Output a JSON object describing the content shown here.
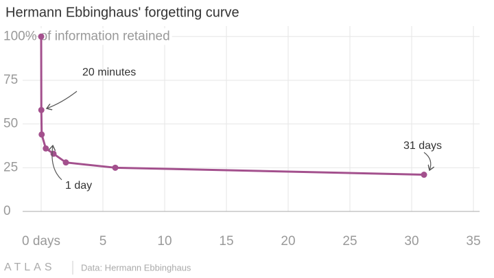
{
  "chart_data": {
    "type": "line",
    "title": "Hermann Ebbinghaus' forgetting curve",
    "ylabel": "of information retained",
    "x": [
      0,
      0.0139,
      0.0417,
      0.375,
      1,
      2,
      6,
      31
    ],
    "series": [
      {
        "color": "#a3508d",
        "values": [
          100,
          58,
          44,
          36,
          33,
          28,
          25,
          21
        ]
      }
    ],
    "xlim": [
      -1.5,
      35.5
    ],
    "xticks": [
      {
        "value": 0,
        "label": "0 days"
      },
      5,
      10,
      15,
      20,
      25,
      30,
      35
    ],
    "ylim": [
      0,
      106
    ],
    "yticks": [
      0,
      25,
      50,
      75,
      {
        "value": 100,
        "label": "100%"
      }
    ],
    "grid": true,
    "annotations": [
      "20 minutes",
      "1 day",
      "31 days"
    ],
    "brand": "ATLAS",
    "source": "Data: Hermann Ebbinghaus"
  }
}
